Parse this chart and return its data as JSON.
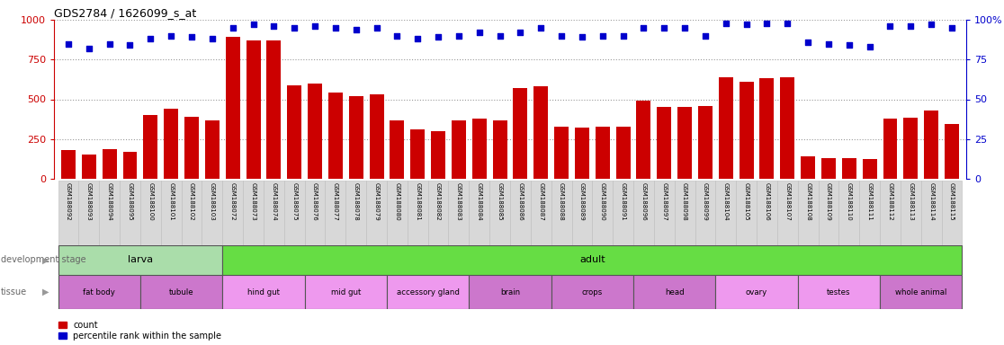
{
  "title": "GDS2784 / 1626099_s_at",
  "samples": [
    "GSM188092",
    "GSM188093",
    "GSM188094",
    "GSM188095",
    "GSM188100",
    "GSM188101",
    "GSM188102",
    "GSM188103",
    "GSM188072",
    "GSM188073",
    "GSM188074",
    "GSM188075",
    "GSM188076",
    "GSM188077",
    "GSM188078",
    "GSM188079",
    "GSM188080",
    "GSM188081",
    "GSM188082",
    "GSM188083",
    "GSM188084",
    "GSM188085",
    "GSM188086",
    "GSM188087",
    "GSM188088",
    "GSM188089",
    "GSM188090",
    "GSM188091",
    "GSM188096",
    "GSM188097",
    "GSM188098",
    "GSM188099",
    "GSM188104",
    "GSM188105",
    "GSM188106",
    "GSM188107",
    "GSM188108",
    "GSM188109",
    "GSM188110",
    "GSM188111",
    "GSM188112",
    "GSM188113",
    "GSM188114",
    "GSM188115"
  ],
  "counts": [
    180,
    155,
    185,
    170,
    400,
    440,
    390,
    370,
    890,
    870,
    870,
    590,
    600,
    540,
    520,
    530,
    370,
    310,
    300,
    370,
    380,
    370,
    570,
    580,
    330,
    320,
    330,
    330,
    490,
    450,
    450,
    460,
    640,
    610,
    630,
    640,
    140,
    130,
    130,
    125,
    380,
    385,
    430,
    345
  ],
  "percentiles": [
    85,
    82,
    85,
    84,
    88,
    90,
    89,
    88,
    95,
    97,
    96,
    95,
    96,
    95,
    94,
    95,
    90,
    88,
    89,
    90,
    92,
    90,
    92,
    95,
    90,
    89,
    90,
    90,
    95,
    95,
    95,
    90,
    98,
    97,
    98,
    98,
    86,
    85,
    84,
    83,
    96,
    96,
    97,
    95
  ],
  "bar_color": "#cc0000",
  "dot_color": "#0000cc",
  "ylim_left": [
    0,
    1000
  ],
  "ylim_right": [
    0,
    100
  ],
  "yticks_left": [
    0,
    250,
    500,
    750,
    1000
  ],
  "yticks_right": [
    0,
    25,
    50,
    75,
    100
  ],
  "dev_stages": [
    {
      "label": "larva",
      "start": 0,
      "end": 7,
      "color": "#aaddaa"
    },
    {
      "label": "adult",
      "start": 8,
      "end": 43,
      "color": "#66dd44"
    }
  ],
  "tissues": [
    {
      "label": "fat body",
      "start": 0,
      "end": 3,
      "color": "#cc77cc"
    },
    {
      "label": "tubule",
      "start": 4,
      "end": 7,
      "color": "#cc77cc"
    },
    {
      "label": "hind gut",
      "start": 8,
      "end": 11,
      "color": "#ee99ee"
    },
    {
      "label": "mid gut",
      "start": 12,
      "end": 15,
      "color": "#ee99ee"
    },
    {
      "label": "accessory gland",
      "start": 16,
      "end": 19,
      "color": "#ee99ee"
    },
    {
      "label": "brain",
      "start": 20,
      "end": 23,
      "color": "#cc77cc"
    },
    {
      "label": "crops",
      "start": 24,
      "end": 27,
      "color": "#cc77cc"
    },
    {
      "label": "head",
      "start": 28,
      "end": 31,
      "color": "#cc77cc"
    },
    {
      "label": "ovary",
      "start": 32,
      "end": 35,
      "color": "#ee99ee"
    },
    {
      "label": "testes",
      "start": 36,
      "end": 39,
      "color": "#ee99ee"
    },
    {
      "label": "whole animal",
      "start": 40,
      "end": 43,
      "color": "#cc77cc"
    }
  ],
  "bar_color_red": "#cc0000",
  "dot_color_blue": "#0000cc",
  "grid_dotted_color": "#888888",
  "label_bg_color": "#d8d8d8",
  "label_border_color": "#aaaaaa",
  "left_axis_color": "#cc0000",
  "right_axis_color": "#0000cc"
}
